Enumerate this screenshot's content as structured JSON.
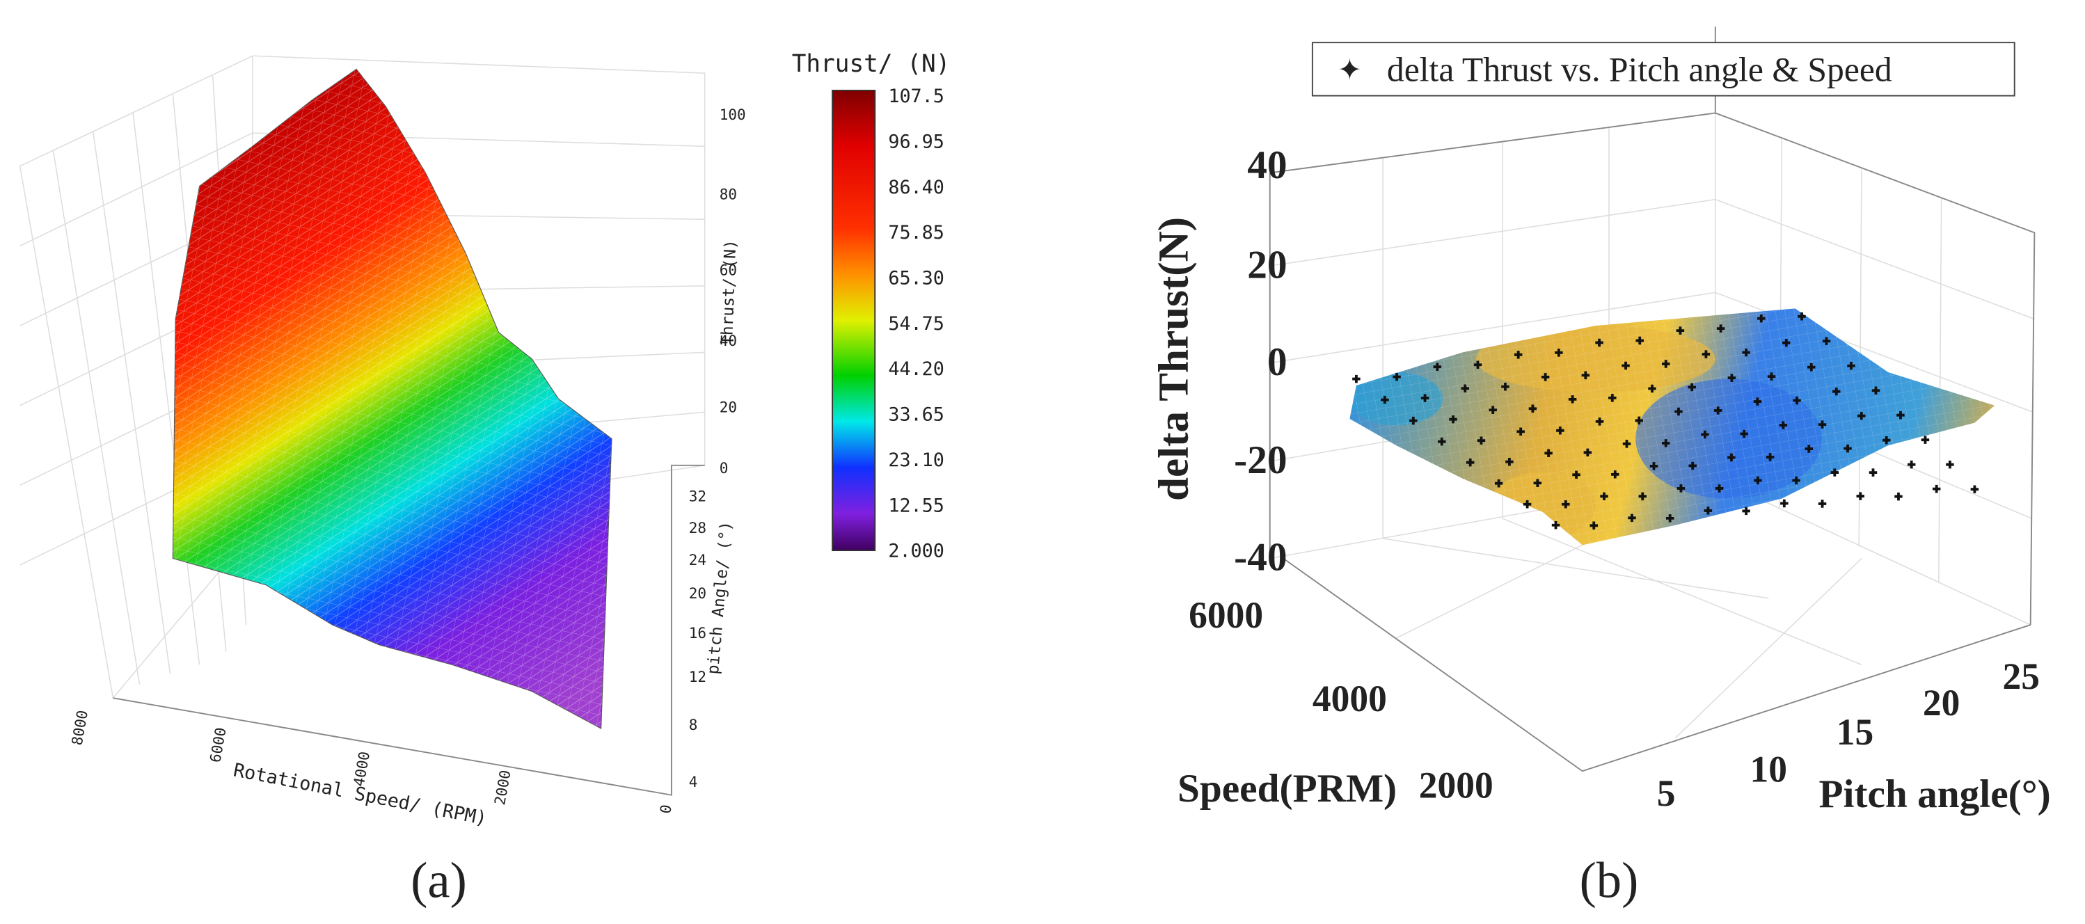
{
  "panels": [
    {
      "caption": "(a)",
      "colorbar": {
        "title": "Thrust/ (N)",
        "labels": [
          "107.5",
          "96.95",
          "86.40",
          "75.85",
          "65.30",
          "54.75",
          "44.20",
          "33.65",
          "23.10",
          "12.55",
          "2.000"
        ]
      },
      "z_axis": {
        "label": "Thrust/ (N)",
        "ticks": [
          "100",
          "80",
          "60",
          "40",
          "20",
          "0"
        ]
      },
      "y_axis": {
        "label": "pitch Angle/ (°)",
        "ticks": [
          "32",
          "28",
          "24",
          "20",
          "16",
          "12",
          "8",
          "4"
        ]
      },
      "x_axis": {
        "label": "Rotational Speed/ (RPM)",
        "ticks": [
          "8000",
          "6000",
          "4000",
          "2000",
          "0"
        ]
      }
    },
    {
      "caption": "(b)",
      "legend": "delta Thrust vs. Pitch angle & Speed",
      "z_axis": {
        "label": "delta Thrust(N)",
        "ticks": [
          "40",
          "20",
          "0",
          "-20",
          "-40"
        ]
      },
      "y_axis": {
        "label": "Speed(PRM)",
        "ticks": [
          "6000",
          "4000",
          "2000"
        ]
      },
      "x_axis": {
        "label": "Pitch angle(°)",
        "ticks": [
          "5",
          "10",
          "15",
          "20",
          "25"
        ]
      }
    }
  ]
}
